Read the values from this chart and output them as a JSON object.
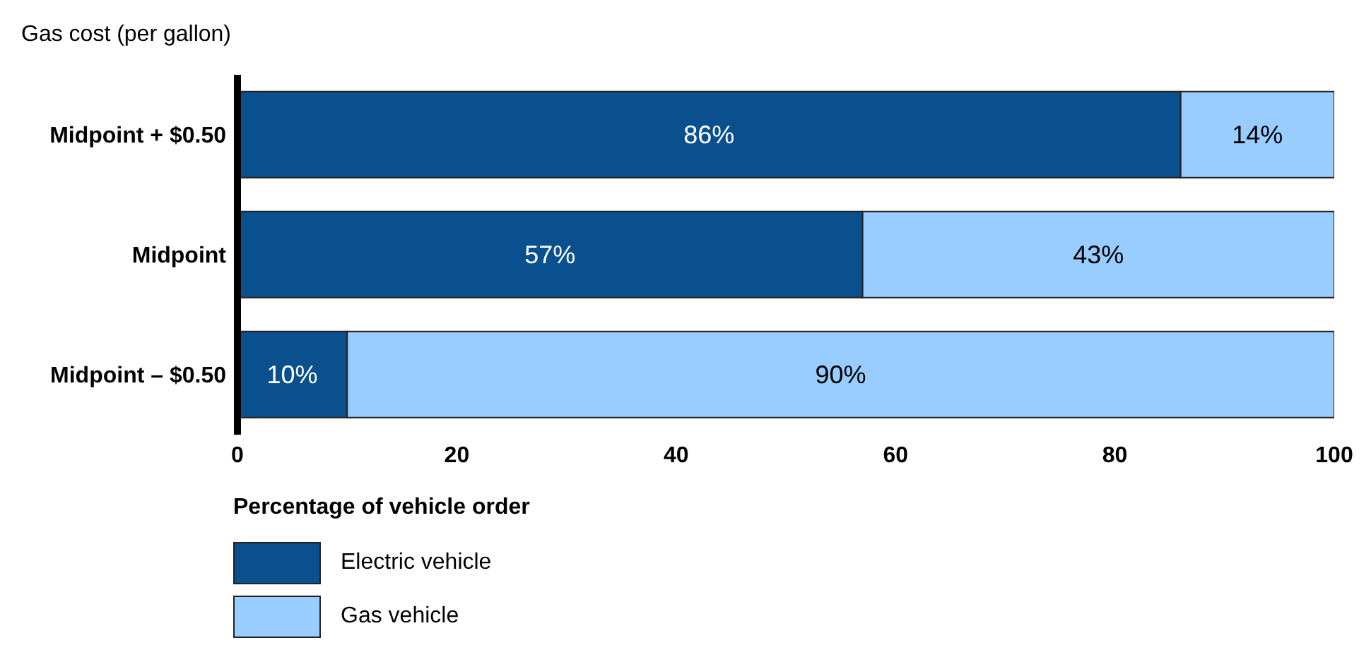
{
  "chart_data": {
    "type": "bar",
    "orientation": "horizontal",
    "stacked": true,
    "ylabel": "Gas cost (per gallon)",
    "xlabel": "Percentage of vehicle order",
    "categories": [
      "Midpoint + $0.50",
      "Midpoint",
      "Midpoint – $0.50"
    ],
    "series": [
      {
        "name": "Electric vehicle",
        "color": "#0a4f8e",
        "values": [
          86,
          57,
          10
        ],
        "value_labels": [
          "86%",
          "57%",
          "10%"
        ]
      },
      {
        "name": "Gas vehicle",
        "color": "#99ccff",
        "values": [
          14,
          43,
          90
        ],
        "value_labels": [
          "14%",
          "43%",
          "90%"
        ]
      }
    ],
    "xlim": [
      0,
      100
    ],
    "xticks": [
      0,
      20,
      40,
      60,
      80,
      100
    ],
    "grid": false,
    "legend": "bottom left"
  }
}
